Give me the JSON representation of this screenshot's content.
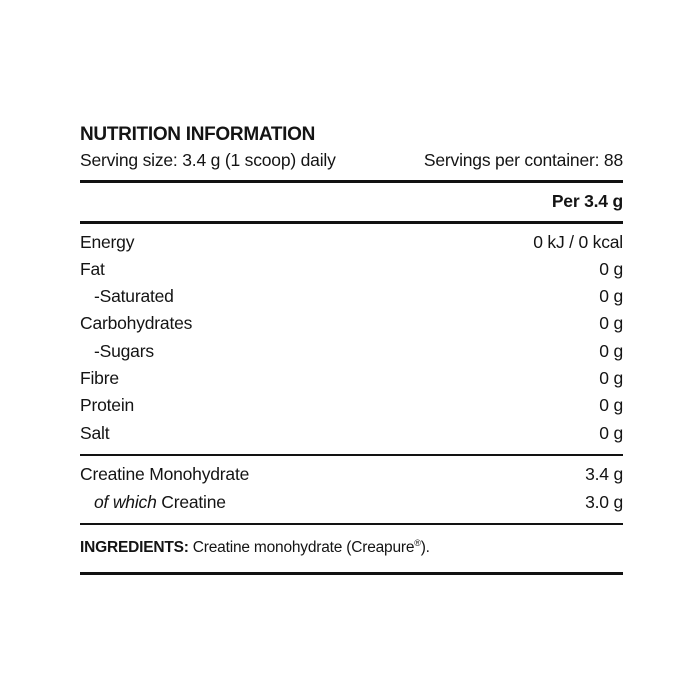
{
  "label": {
    "title": "NUTRITION INFORMATION",
    "serving_size": "Serving size: 3.4 g (1 scoop) daily",
    "servings_per_container": "Servings per container: 88",
    "column_header": "Per 3.4 g",
    "nutrients": [
      {
        "name": "Energy",
        "value": "0 kJ / 0 kcal",
        "indent": false
      },
      {
        "name": "Fat",
        "value": "0 g",
        "indent": false
      },
      {
        "name": "-Saturated",
        "value": "0 g",
        "indent": true
      },
      {
        "name": "Carbohydrates",
        "value": "0 g",
        "indent": false
      },
      {
        "name": "-Sugars",
        "value": "0 g",
        "indent": true
      },
      {
        "name": "Fibre",
        "value": "0 g",
        "indent": false
      },
      {
        "name": "Protein",
        "value": "0 g",
        "indent": false
      },
      {
        "name": "Salt",
        "value": "0 g",
        "indent": false
      }
    ],
    "actives": [
      {
        "name": "Creatine Monohydrate",
        "value": "3.4 g",
        "indent": false
      },
      {
        "name_italic": "of which",
        "name": "Creatine",
        "value": "3.0 g",
        "indent": true
      }
    ],
    "ingredients": {
      "label": "INGREDIENTS:",
      "text_before_reg": " Creatine monohydrate (Creapure",
      "reg_symbol": "®",
      "text_after_reg": ")."
    },
    "colors": {
      "text": "#141414",
      "rule": "#121212",
      "background": "#ffffff"
    }
  }
}
